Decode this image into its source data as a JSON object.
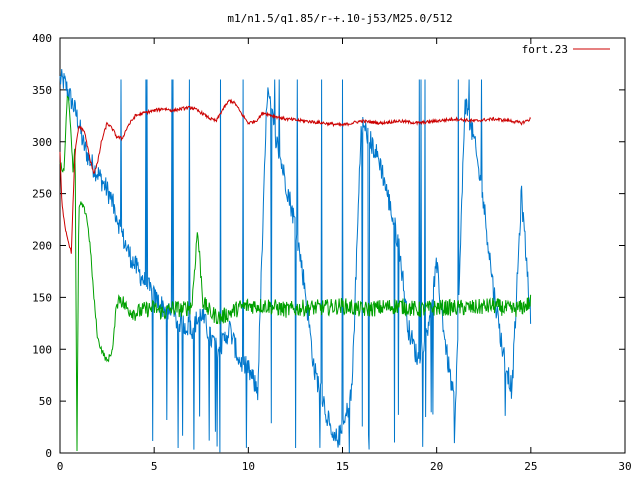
{
  "chart_data": {
    "type": "line",
    "title": "m1/n1.5/q1.85/r-+.10-j53/M25.0/512",
    "xlabel": "",
    "ylabel": "",
    "xlim": [
      0,
      30
    ],
    "ylim": [
      0,
      400
    ],
    "x_ticks": [
      "0",
      "5",
      "10",
      "15",
      "20",
      "25",
      "30"
    ],
    "y_ticks": [
      "0",
      "50",
      "100",
      "150",
      "200",
      "250",
      "300",
      "350",
      "400"
    ],
    "grid": false,
    "legend": {
      "position": "top-right",
      "entries": [
        "fort.23"
      ]
    },
    "series": [
      {
        "name": "fort.23",
        "color": "#cc0000",
        "style": "smooth",
        "x": [
          0,
          0.1,
          0.3,
          0.5,
          0.6,
          0.7,
          0.8,
          1.0,
          1.3,
          1.6,
          1.8,
          2.0,
          2.2,
          2.5,
          2.8,
          3.0,
          3.3,
          3.6,
          4.0,
          4.5,
          5.0,
          5.5,
          6.0,
          6.5,
          7.0,
          7.5,
          8.0,
          8.3,
          8.6,
          9.0,
          9.3,
          9.6,
          10.0,
          10.4,
          10.8,
          11.3,
          12.0,
          13.0,
          14.0,
          15.0,
          16.0,
          17.0,
          18.0,
          19.0,
          20.0,
          21.0,
          22.0,
          23.0,
          24.0,
          24.5,
          25.0
        ],
        "y": [
          290,
          240,
          215,
          200,
          193,
          245,
          290,
          315,
          310,
          282,
          270,
          280,
          300,
          318,
          312,
          305,
          303,
          315,
          325,
          328,
          330,
          332,
          330,
          332,
          333,
          328,
          322,
          320,
          330,
          340,
          337,
          328,
          318,
          320,
          328,
          325,
          322,
          320,
          318,
          316,
          320,
          318,
          320,
          318,
          320,
          322,
          320,
          322,
          320,
          318,
          322
        ]
      },
      {
        "color": "#00a000",
        "style": "noisy",
        "x": [
          0,
          0.2,
          0.4,
          0.55,
          0.7,
          0.8,
          0.9,
          1.0,
          1.1,
          1.2,
          1.4,
          1.6,
          1.8,
          2.0,
          2.2,
          2.5,
          2.8,
          3.0,
          3.2,
          3.5,
          4.0,
          4.5,
          5.0,
          5.5,
          6.0,
          6.5,
          7.0,
          7.3,
          7.6,
          8.0,
          8.5,
          9.0,
          9.5,
          10.0,
          11.0,
          12.0,
          13.0,
          14.0,
          15.0,
          16.0,
          17.0,
          18.0,
          19.0,
          20.0,
          21.0,
          22.0,
          23.0,
          24.0,
          24.5,
          25.0
        ],
        "y": [
          280,
          270,
          350,
          320,
          270,
          300,
          0,
          235,
          240,
          238,
          230,
          200,
          150,
          110,
          100,
          88,
          100,
          145,
          150,
          140,
          135,
          138,
          140,
          135,
          140,
          138,
          142,
          215,
          145,
          135,
          130,
          135,
          140,
          142,
          142,
          138,
          140,
          140,
          142,
          138,
          140,
          142,
          138,
          140,
          140,
          140,
          142,
          138,
          140,
          145
        ]
      },
      {
        "color": "#0077cc",
        "style": "spiky",
        "x": [
          0,
          0.2,
          0.4,
          0.6,
          0.8,
          1.0,
          1.2,
          1.5,
          1.8,
          2.0,
          2.3,
          2.6,
          3.0,
          3.3,
          3.6,
          4.0,
          4.5,
          5.0,
          5.5,
          6.0,
          6.5,
          7.0,
          7.5,
          8.0,
          8.5,
          9.0,
          9.5,
          10.0,
          10.5,
          11.0,
          11.5,
          12.0,
          12.5,
          13.0,
          13.5,
          14.0,
          14.5,
          15.0,
          15.5,
          16.0,
          16.5,
          17.0,
          17.5,
          18.0,
          18.5,
          19.0,
          19.5,
          20.0,
          20.5,
          21.0,
          21.5,
          22.0,
          22.5,
          23.0,
          23.5,
          24.0,
          24.5,
          25.0
        ],
        "y": [
          360,
          358,
          350,
          340,
          330,
          318,
          300,
          285,
          275,
          270,
          260,
          250,
          230,
          210,
          195,
          180,
          165,
          150,
          140,
          130,
          125,
          120,
          135,
          110,
          100,
          120,
          90,
          80,
          60,
          350,
          300,
          260,
          220,
          160,
          80,
          50,
          10,
          20,
          60,
          320,
          300,
          280,
          240,
          200,
          120,
          90,
          120,
          180,
          100,
          40,
          340,
          300,
          240,
          160,
          100,
          60,
          250,
          130
        ]
      }
    ]
  }
}
